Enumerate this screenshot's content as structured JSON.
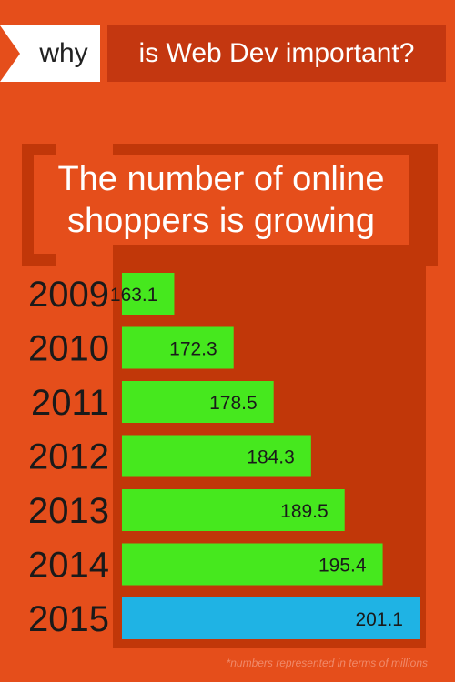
{
  "header": {
    "tag": "why",
    "question": "is Web Dev important?"
  },
  "title": {
    "line1": "The number of online",
    "line2": "shoppers is growing"
  },
  "chart_data": {
    "type": "bar",
    "orientation": "horizontal",
    "categories": [
      "2009",
      "2010",
      "2011",
      "2012",
      "2013",
      "2014",
      "2015"
    ],
    "values": [
      163.1,
      172.3,
      178.5,
      184.3,
      189.5,
      195.4,
      201.1
    ],
    "value_labels": [
      "163.1",
      "172.3",
      "178.5",
      "184.3",
      "189.5",
      "195.4",
      "201.1"
    ],
    "highlight_index": 6,
    "xlim": [
      155,
      201.1
    ],
    "grid": false,
    "legend": "none"
  },
  "colors": {
    "bar": "#46e81e",
    "highlight": "#1fb3e4",
    "year_text": "#1a1a1a",
    "label_text": "#1a1a1a"
  },
  "footnote": "*numbers represented in terms of millions"
}
